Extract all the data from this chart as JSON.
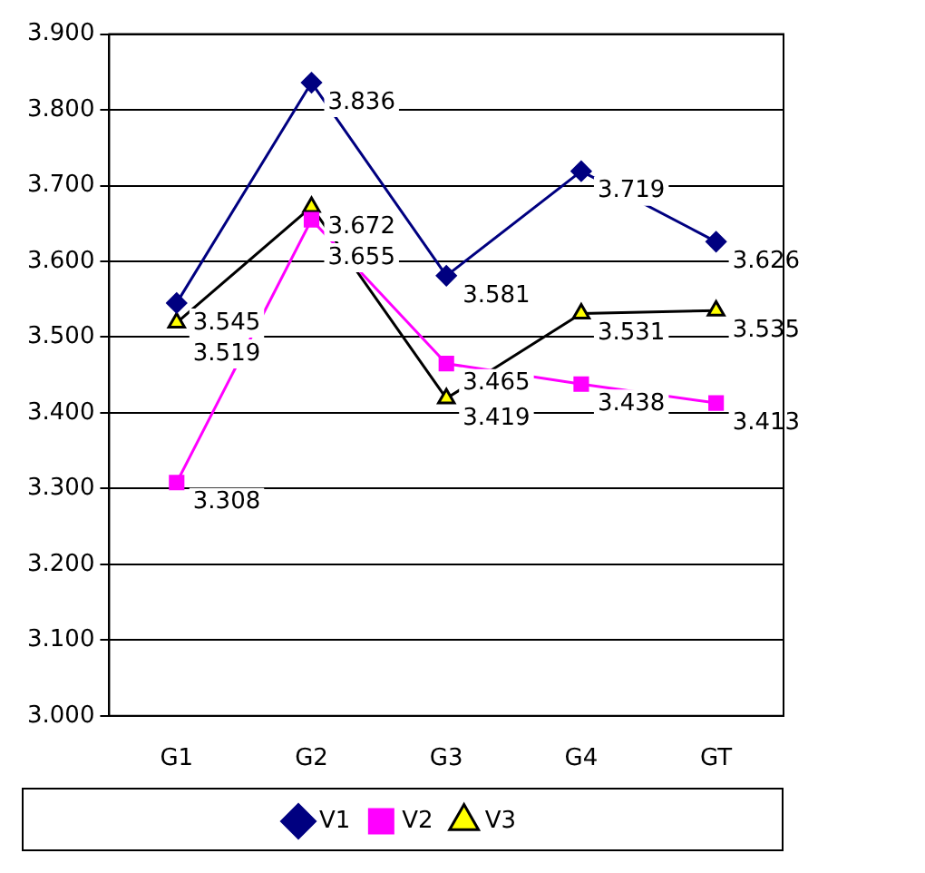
{
  "chart_data": {
    "type": "line",
    "categories": [
      "G1",
      "G2",
      "G3",
      "G4",
      "GT"
    ],
    "series": [
      {
        "name": "V1",
        "color": "#000080",
        "marker": "diamond",
        "values": [
          3.545,
          3.836,
          3.581,
          3.719,
          3.626
        ]
      },
      {
        "name": "V2",
        "color": "#ff00ff",
        "marker": "square",
        "values": [
          3.308,
          3.655,
          3.465,
          3.438,
          3.413
        ]
      },
      {
        "name": "V3",
        "color": "#000000",
        "marker": "triangle",
        "values": [
          3.519,
          3.672,
          3.419,
          3.531,
          3.535
        ]
      }
    ],
    "ylim": [
      3.0,
      3.9
    ],
    "yticks": [
      {
        "value": 3.0,
        "label": "3.000"
      },
      {
        "value": 3.1,
        "label": "3.100"
      },
      {
        "value": 3.2,
        "label": "3.200"
      },
      {
        "value": 3.3,
        "label": "3.300"
      },
      {
        "value": 3.4,
        "label": "3.400"
      },
      {
        "value": 3.5,
        "label": "3.500"
      },
      {
        "value": 3.6,
        "label": "3.600"
      },
      {
        "value": 3.7,
        "label": "3.700"
      },
      {
        "value": 3.8,
        "label": "3.800"
      },
      {
        "value": 3.9,
        "label": "3.900"
      }
    ],
    "grid": "y",
    "legend": "bottom",
    "data_labels": true
  }
}
